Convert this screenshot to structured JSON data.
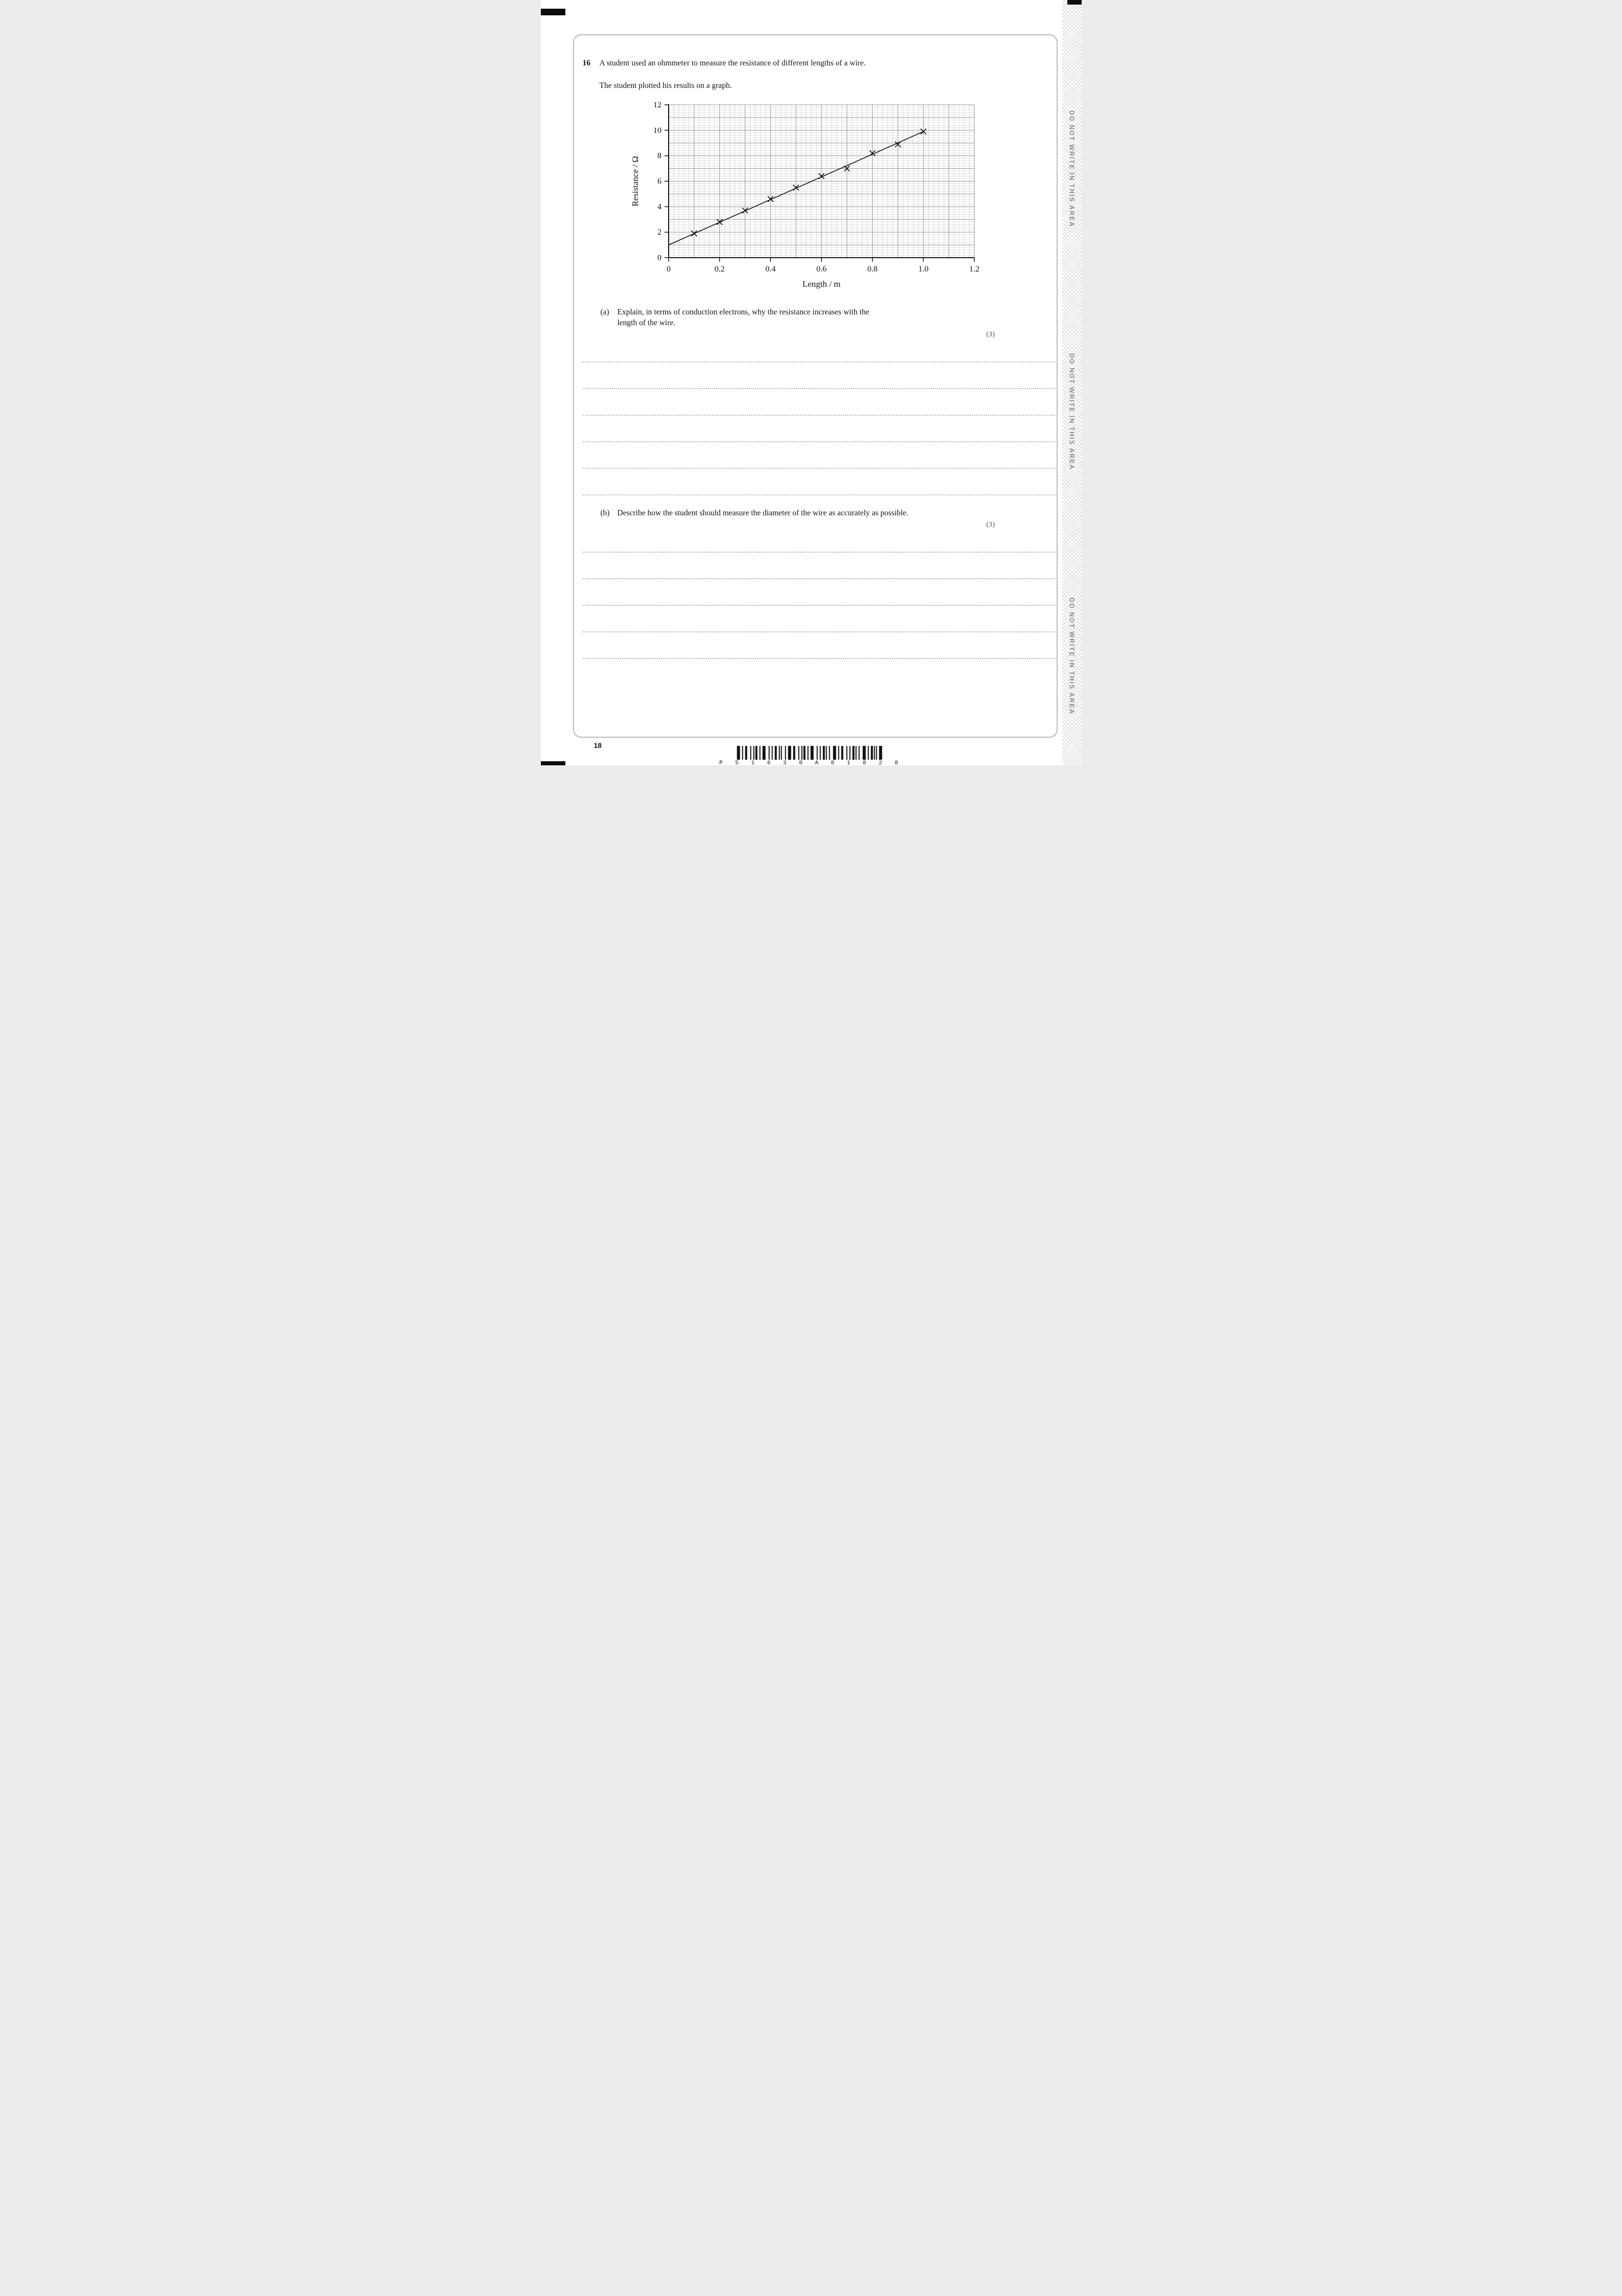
{
  "page": {
    "number": "18",
    "side_text": "DO NOT WRITE IN THIS AREA",
    "barcode_text": "P 5 1 6 3 0 A 0 1 8 2 8"
  },
  "question": {
    "number": "16",
    "intro_line1": "A student used an ohmmeter to measure the resistance of different lengths of a wire.",
    "intro_line2": "The student plotted his results on a graph.",
    "parts": [
      {
        "label": "(a)",
        "lines": [
          "Explain, in terms of conduction electrons, why the resistance increases with the",
          "length of the wire."
        ],
        "marks": "(3)",
        "answer_lines": 6
      },
      {
        "label": "(b)",
        "lines": [
          "Describe how the student should measure the diameter of the wire as accurately as possible."
        ],
        "marks": "(3)",
        "answer_lines": 5
      }
    ]
  },
  "chart_data": {
    "type": "scatter",
    "title": "",
    "xlabel": "Length / m",
    "ylabel": "Resistance / Ω",
    "xlim": [
      0,
      1.2
    ],
    "ylim": [
      0,
      12
    ],
    "xtick_labels": [
      "0",
      "0.2",
      "0.4",
      "0.6",
      "0.8",
      "1.0",
      "1.2"
    ],
    "ytick_labels": [
      "0",
      "2",
      "4",
      "6",
      "8",
      "10",
      "12"
    ],
    "grid": {
      "on": true,
      "minor_step_x": 0.02,
      "minor_step_y": 0.2,
      "major_step_x": 0.1,
      "major_step_y": 1.0
    },
    "marker": "x",
    "points": [
      {
        "x": 0.1,
        "y": 1.9
      },
      {
        "x": 0.2,
        "y": 2.8
      },
      {
        "x": 0.3,
        "y": 3.7
      },
      {
        "x": 0.4,
        "y": 4.6
      },
      {
        "x": 0.5,
        "y": 5.5
      },
      {
        "x": 0.6,
        "y": 6.4
      },
      {
        "x": 0.7,
        "y": 7.0
      },
      {
        "x": 0.8,
        "y": 8.2
      },
      {
        "x": 0.9,
        "y": 8.9
      },
      {
        "x": 1.0,
        "y": 9.9
      }
    ],
    "best_fit_line": {
      "x1": 0,
      "y1": 1.0,
      "x2": 1.0,
      "y2": 9.9
    },
    "legend": false
  }
}
